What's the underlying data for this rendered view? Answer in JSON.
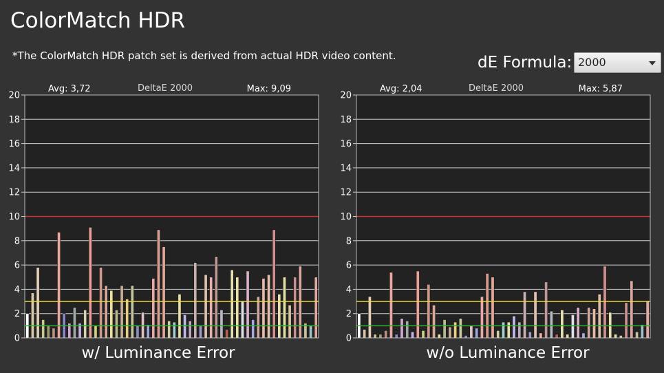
{
  "header": {
    "title": "ColorMatch HDR",
    "note": "*The ColorMatch HDR patch set is derived from actual HDR video content."
  },
  "controls": {
    "formula_label": "dE Formula:",
    "formula_value": "2000"
  },
  "colors": {
    "background": "#333333",
    "plot_background": "#222222",
    "grid": "#cfcfcf",
    "red_line": "#d03030",
    "yellow_line": "#e8d840",
    "green_line": "#30b030"
  },
  "chart_data": [
    {
      "type": "bar",
      "title": "w/ Luminance Error",
      "subtitle": "DeltaE 2000",
      "avg_label": "Avg: 3,72",
      "max_label": "Max: 9,09",
      "ylim": [
        0,
        20
      ],
      "yticks": [
        "0",
        "2",
        "4",
        "6",
        "8",
        "10",
        "12",
        "14",
        "16",
        "18",
        "20"
      ],
      "reference_lines": [
        10,
        3,
        1
      ],
      "grid": true,
      "values": [
        2.0,
        3.7,
        5.8,
        1.5,
        1.0,
        0.8,
        8.7,
        2.0,
        1.2,
        2.5,
        1.2,
        2.3,
        9.1,
        1.0,
        5.8,
        4.3,
        3.9,
        2.3,
        4.3,
        3.2,
        4.3,
        1.0,
        2.1,
        1.1,
        4.9,
        8.9,
        7.5,
        1.4,
        1.3,
        3.6,
        1.9,
        1.4,
        6.2,
        1.0,
        5.2,
        5.0,
        6.7,
        2.3,
        0.7,
        5.6,
        5.0,
        3.0,
        5.5,
        1.5,
        3.4,
        4.9,
        5.2,
        8.9,
        3.6,
        5.0,
        2.7,
        5.0,
        5.9,
        1.2,
        1.0,
        5.0
      ],
      "colors": [
        "#ffffff",
        "#d8c8a8",
        "#e4d0b8",
        "#c8c890",
        "#a0a070",
        "#b89080",
        "#e8a8a0",
        "#8888c8",
        "#d0a8d0",
        "#a0a8a8",
        "#c8b0e0",
        "#d8d0b0",
        "#e8a098",
        "#d0d080",
        "#d09888",
        "#d8a898",
        "#e8e0a0",
        "#b8b890",
        "#c8b098",
        "#e8d080",
        "#c8c8a0",
        "#9090c0",
        "#e0c0c0",
        "#a0a8e0",
        "#e8a8a8",
        "#d8a090",
        "#e0a898",
        "#d0d0a0",
        "#a0d0d0",
        "#e8e0a8",
        "#c0b8e8",
        "#c0a8c0",
        "#c8b0b0",
        "#a098c8",
        "#e0c0b0",
        "#e8b0a8",
        "#c09898",
        "#b8b8c0",
        "#b06050",
        "#e8e0b0",
        "#e8e0a8",
        "#e0e0e8",
        "#d8b0c8",
        "#a8a8e0",
        "#d0a8a0",
        "#e8b8a8",
        "#e0c0a8",
        "#d09090",
        "#e8e0b0",
        "#e0e0a0",
        "#d8c8a0",
        "#c89090",
        "#d8a8a0",
        "#c8c0a0",
        "#a0c0c8",
        "#e0a8a0"
      ]
    },
    {
      "type": "bar",
      "title": "w/o Luminance Error",
      "subtitle": "DeltaE 2000",
      "avg_label": "Avg: 2,04",
      "max_label": "Max: 5,87",
      "ylim": [
        0,
        20
      ],
      "yticks": [
        "0",
        "2",
        "4",
        "6",
        "8",
        "10",
        "12",
        "14",
        "16",
        "18",
        "20"
      ],
      "reference_lines": [
        10,
        3,
        1
      ],
      "grid": true,
      "values": [
        2.0,
        0.7,
        3.4,
        0.3,
        0.3,
        0.6,
        5.4,
        0.3,
        1.6,
        1.4,
        0.5,
        5.5,
        0.6,
        4.4,
        2.7,
        0.3,
        1.5,
        0.9,
        1.3,
        1.6,
        0.2,
        1.0,
        0.8,
        3.4,
        5.3,
        5.0,
        0.6,
        1.3,
        1.3,
        1.8,
        1.3,
        3.8,
        0.5,
        3.8,
        0.4,
        4.6,
        2.2,
        0.3,
        2.3,
        0.3,
        1.9,
        2.5,
        0.4,
        2.5,
        2.4,
        3.6,
        5.9,
        2.1,
        0.3,
        0.2,
        2.9,
        4.7,
        0.5,
        1.1,
        3.0
      ],
      "colors": [
        "#ffffff",
        "#d8c8a8",
        "#e4d0b8",
        "#c8c890",
        "#a0a070",
        "#b89080",
        "#e8a8a0",
        "#8888c8",
        "#d0a8d0",
        "#a0a8a8",
        "#c8b0e0",
        "#e8a098",
        "#d0d080",
        "#d09888",
        "#d8a898",
        "#e8e0a0",
        "#b8b890",
        "#c8b098",
        "#e8d080",
        "#c8c8a0",
        "#9090c0",
        "#e0c0c0",
        "#a0a8e0",
        "#e8a8a8",
        "#d8a090",
        "#e0a898",
        "#d0d0a0",
        "#a0d0d0",
        "#e8e0a8",
        "#c0b8e8",
        "#c0a8c0",
        "#c8b0b0",
        "#a098c8",
        "#e0c0b0",
        "#e8b0a8",
        "#c09898",
        "#b8b8c0",
        "#b06050",
        "#e8e0b0",
        "#e8e0a8",
        "#e0e0e8",
        "#d8b0c8",
        "#a8a8e0",
        "#d0a8a0",
        "#e8b8a8",
        "#e0c0a8",
        "#d09090",
        "#e8e0b0",
        "#e0e0a0",
        "#d8c8a0",
        "#c89090",
        "#d8a8a0",
        "#c8c0a0",
        "#a0c0c8",
        "#e0a8a0"
      ]
    }
  ]
}
